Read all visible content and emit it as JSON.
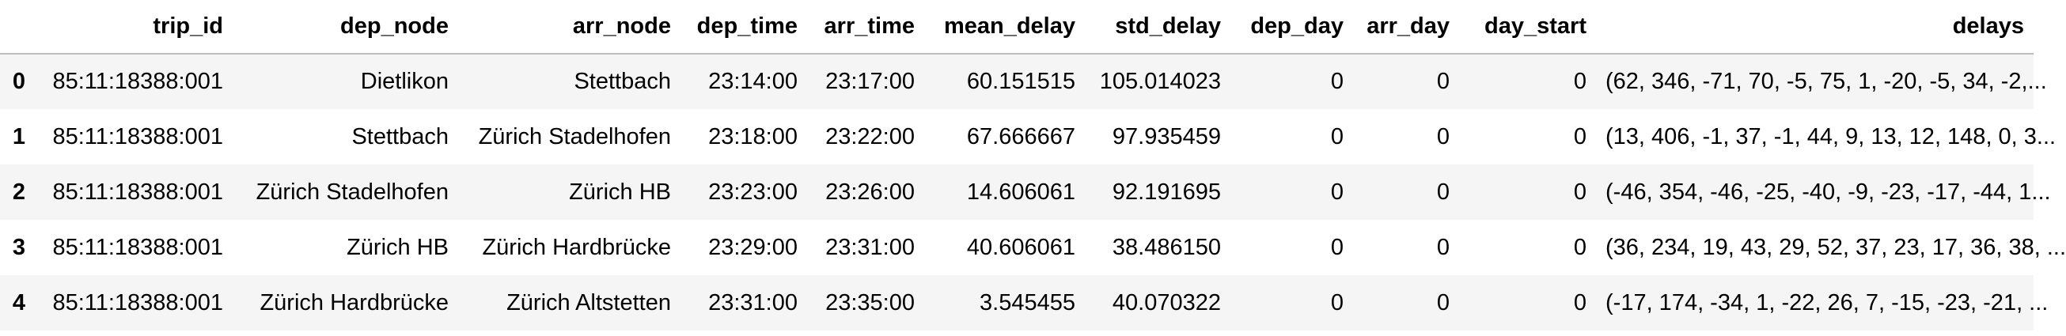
{
  "table": {
    "columns": [
      "trip_id",
      "dep_node",
      "arr_node",
      "dep_time",
      "arr_time",
      "mean_delay",
      "std_delay",
      "dep_day",
      "arr_day",
      "day_start",
      "delays"
    ],
    "rows": [
      {
        "index": "0",
        "trip_id": "85:11:18388:001",
        "dep_node": "Dietlikon",
        "arr_node": "Stettbach",
        "dep_time": "23:14:00",
        "arr_time": "23:17:00",
        "mean_delay": "60.151515",
        "std_delay": "105.014023",
        "dep_day": "0",
        "arr_day": "0",
        "day_start": "0",
        "delays": "(62, 346, -71, 70, -5, 75, 1, -20, -5, 34, -2,..."
      },
      {
        "index": "1",
        "trip_id": "85:11:18388:001",
        "dep_node": "Stettbach",
        "arr_node": "Zürich Stadelhofen",
        "dep_time": "23:18:00",
        "arr_time": "23:22:00",
        "mean_delay": "67.666667",
        "std_delay": "97.935459",
        "dep_day": "0",
        "arr_day": "0",
        "day_start": "0",
        "delays": "(13, 406, -1, 37, -1, 44, 9, 13, 12, 148, 0, 3..."
      },
      {
        "index": "2",
        "trip_id": "85:11:18388:001",
        "dep_node": "Zürich Stadelhofen",
        "arr_node": "Zürich HB",
        "dep_time": "23:23:00",
        "arr_time": "23:26:00",
        "mean_delay": "14.606061",
        "std_delay": "92.191695",
        "dep_day": "0",
        "arr_day": "0",
        "day_start": "0",
        "delays": "(-46, 354, -46, -25, -40, -9, -23, -17, -44, 1..."
      },
      {
        "index": "3",
        "trip_id": "85:11:18388:001",
        "dep_node": "Zürich HB",
        "arr_node": "Zürich Hardbrücke",
        "dep_time": "23:29:00",
        "arr_time": "23:31:00",
        "mean_delay": "40.606061",
        "std_delay": "38.486150",
        "dep_day": "0",
        "arr_day": "0",
        "day_start": "0",
        "delays": "(36, 234, 19, 43, 29, 52, 37, 23, 17, 36, 38, ..."
      },
      {
        "index": "4",
        "trip_id": "85:11:18388:001",
        "dep_node": "Zürich Hardbrücke",
        "arr_node": "Zürich Altstetten",
        "dep_time": "23:31:00",
        "arr_time": "23:35:00",
        "mean_delay": "3.545455",
        "std_delay": "40.070322",
        "dep_day": "0",
        "arr_day": "0",
        "day_start": "0",
        "delays": "(-17, 174, -34, 1, -22, 26, 7, -15, -23, -21, ..."
      }
    ]
  }
}
